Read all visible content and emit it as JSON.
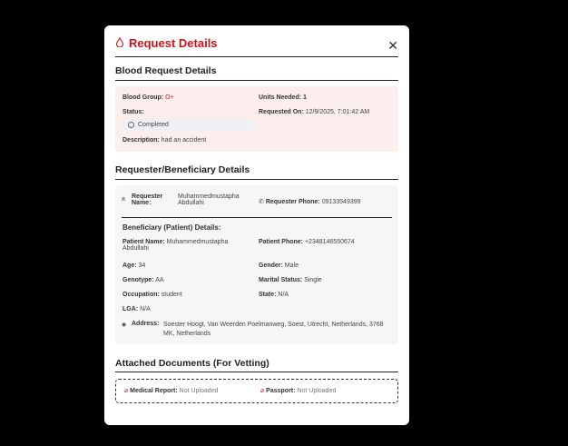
{
  "modal": {
    "title": "Request Details",
    "close_icon": "close-icon",
    "title_icon": "blood-drop-icon"
  },
  "blood": {
    "heading": "Blood Request Details",
    "blood_group_label": "Blood Group:",
    "blood_group": "O+",
    "units_label": "Units Needed:",
    "units": "1",
    "status_label": "Status:",
    "status": "Completed",
    "requested_label": "Requested On:",
    "requested_on": "12/9/2025, 7:01:42 AM",
    "description_label": "Description:",
    "description": "had an accident"
  },
  "requester": {
    "heading": "Requester/Beneficiary Details",
    "name_label": "Requester Name:",
    "name": "Muhammedmustapha Abdullahi",
    "phone_label": "Requester Phone:",
    "phone": "09133549399"
  },
  "beneficiary": {
    "heading": "Beneficiary (Patient) Details:",
    "patient_name_label": "Patient Name:",
    "patient_name": "Muhammedmustapha Abdullahi",
    "patient_phone_label": "Patient Phone:",
    "patient_phone": "+2348146550674",
    "age_label": "Age:",
    "age": "34",
    "gender_label": "Gender:",
    "gender": "Male",
    "genotype_label": "Genotype:",
    "genotype": "AA",
    "marital_label": "Marital Status:",
    "marital": "Single",
    "occupation_label": "Occupation:",
    "occupation": "student",
    "state_label": "State:",
    "state": "N/A",
    "lga_label": "LGA:",
    "lga": "N/A",
    "address_label": "Address:",
    "address": "Soester Hoogt, Van Weerden Poelmanweg, Soest, Utrecht, Netherlands, 3768 MK, Netherlands"
  },
  "documents": {
    "heading": "Attached Documents (For Vetting)",
    "items": [
      {
        "label": "Medical Report:",
        "value": "Not Uploaded"
      },
      {
        "label": "Passport:",
        "value": "Not Uploaded"
      }
    ]
  },
  "colors": {
    "accent": "#d0121b",
    "blood_box": "#fdeeee",
    "info_box": "#f5f6f8"
  }
}
